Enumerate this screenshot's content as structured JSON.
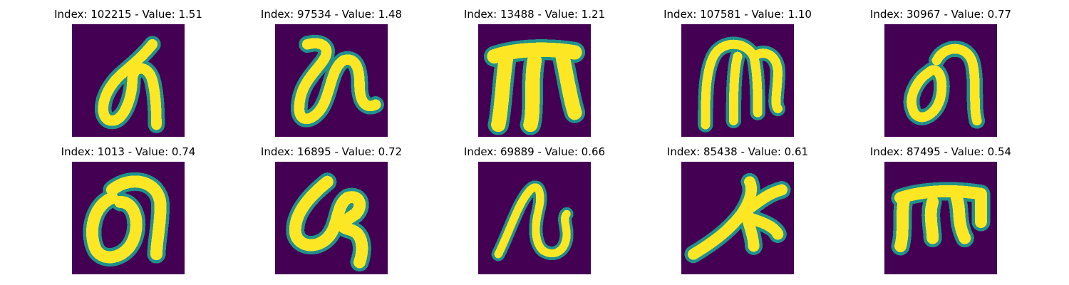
{
  "colormap": {
    "background": "#440154",
    "low": "#3b528b",
    "mid": "#21918c",
    "high": "#5ec962",
    "peak": "#fde725"
  },
  "samples": [
    {
      "index": "102215",
      "value": "1.51",
      "title": "Index: 102215 - Value: 1.51",
      "glyph": "character-like handwritten glyph"
    },
    {
      "index": "97534",
      "value": "1.48",
      "title": "Index: 97534 - Value: 1.48",
      "glyph": "character-like handwritten glyph"
    },
    {
      "index": "13488",
      "value": "1.21",
      "title": "Index: 13488 - Value: 1.21",
      "glyph": "character-like handwritten glyph"
    },
    {
      "index": "107581",
      "value": "1.10",
      "title": "Index: 107581 - Value: 1.10",
      "glyph": "character-like handwritten glyph"
    },
    {
      "index": "30967",
      "value": "0.77",
      "title": "Index: 30967 - Value: 0.77",
      "glyph": "character-like handwritten glyph"
    },
    {
      "index": "1013",
      "value": "0.74",
      "title": "Index: 1013 - Value: 0.74",
      "glyph": "character-like handwritten glyph"
    },
    {
      "index": "16895",
      "value": "0.72",
      "title": "Index: 16895 - Value: 0.72",
      "glyph": "character-like handwritten glyph"
    },
    {
      "index": "69889",
      "value": "0.66",
      "title": "Index: 69889 - Value: 0.66",
      "glyph": "character-like handwritten glyph"
    },
    {
      "index": "85438",
      "value": "0.61",
      "title": "Index: 85438 - Value: 0.61",
      "glyph": "character-like handwritten glyph"
    },
    {
      "index": "87495",
      "value": "0.54",
      "title": "Index: 87495 - Value: 0.54",
      "glyph": "character-like handwritten glyph"
    }
  ]
}
